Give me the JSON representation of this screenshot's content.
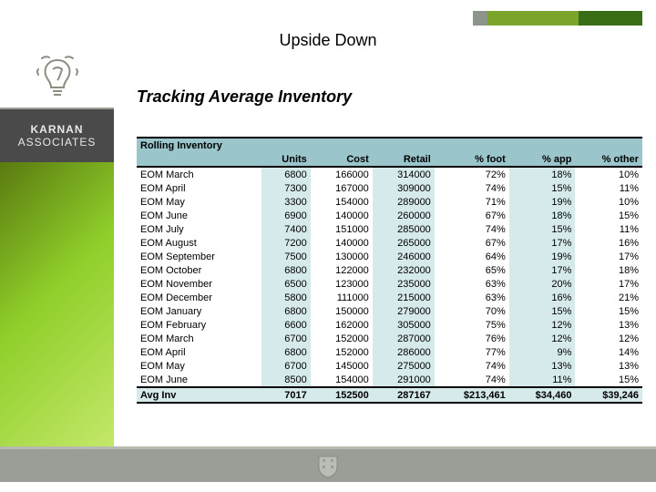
{
  "topbar": {
    "squares": [
      {
        "color": "#8d958b",
        "width": 16
      },
      {
        "color": "#7aa52a",
        "width": 100
      },
      {
        "color": "#3a6e16",
        "width": 70
      }
    ]
  },
  "header": {
    "title": "Upside Down"
  },
  "subtitle": "Tracking Average Inventory",
  "brand": {
    "line1": "KARNAN",
    "line2": "ASSOCIATES"
  },
  "table": {
    "caption": "Rolling Inventory",
    "columns": [
      "",
      "Units",
      "Cost",
      "Retail",
      "% foot",
      "% app",
      "% other"
    ],
    "shaded_cols": [
      1,
      3,
      5
    ],
    "rows": [
      [
        "EOM March",
        "6800",
        "166000",
        "314000",
        "72%",
        "18%",
        "10%"
      ],
      [
        "EOM April",
        "7300",
        "167000",
        "309000",
        "74%",
        "15%",
        "11%"
      ],
      [
        "EOM May",
        "3300",
        "154000",
        "289000",
        "71%",
        "19%",
        "10%"
      ],
      [
        "EOM June",
        "6900",
        "140000",
        "260000",
        "67%",
        "18%",
        "15%"
      ],
      [
        "EOM July",
        "7400",
        "151000",
        "285000",
        "74%",
        "15%",
        "11%"
      ],
      [
        "EOM August",
        "7200",
        "140000",
        "265000",
        "67%",
        "17%",
        "16%"
      ],
      [
        "EOM September",
        "7500",
        "130000",
        "246000",
        "64%",
        "19%",
        "17%"
      ],
      [
        "EOM October",
        "6800",
        "122000",
        "232000",
        "65%",
        "17%",
        "18%"
      ],
      [
        "EOM November",
        "6500",
        "123000",
        "235000",
        "63%",
        "20%",
        "17%"
      ],
      [
        "EOM December",
        "5800",
        "111000",
        "215000",
        "63%",
        "16%",
        "21%"
      ],
      [
        "EOM January",
        "6800",
        "150000",
        "279000",
        "70%",
        "15%",
        "15%"
      ],
      [
        "EOM February",
        "6600",
        "162000",
        "305000",
        "75%",
        "12%",
        "13%"
      ],
      [
        "EOM March",
        "6700",
        "152000",
        "287000",
        "76%",
        "12%",
        "12%"
      ],
      [
        "EOM April",
        "6800",
        "152000",
        "286000",
        "77%",
        "9%",
        "14%"
      ],
      [
        "EOM May",
        "6700",
        "145000",
        "275000",
        "74%",
        "13%",
        "13%"
      ],
      [
        "EOM June",
        "8500",
        "154000",
        "291000",
        "74%",
        "11%",
        "15%"
      ]
    ],
    "footer": [
      "Avg Inv",
      "7017",
      "152500",
      "287167",
      "$213,461",
      "$34,460",
      "$39,246"
    ]
  }
}
